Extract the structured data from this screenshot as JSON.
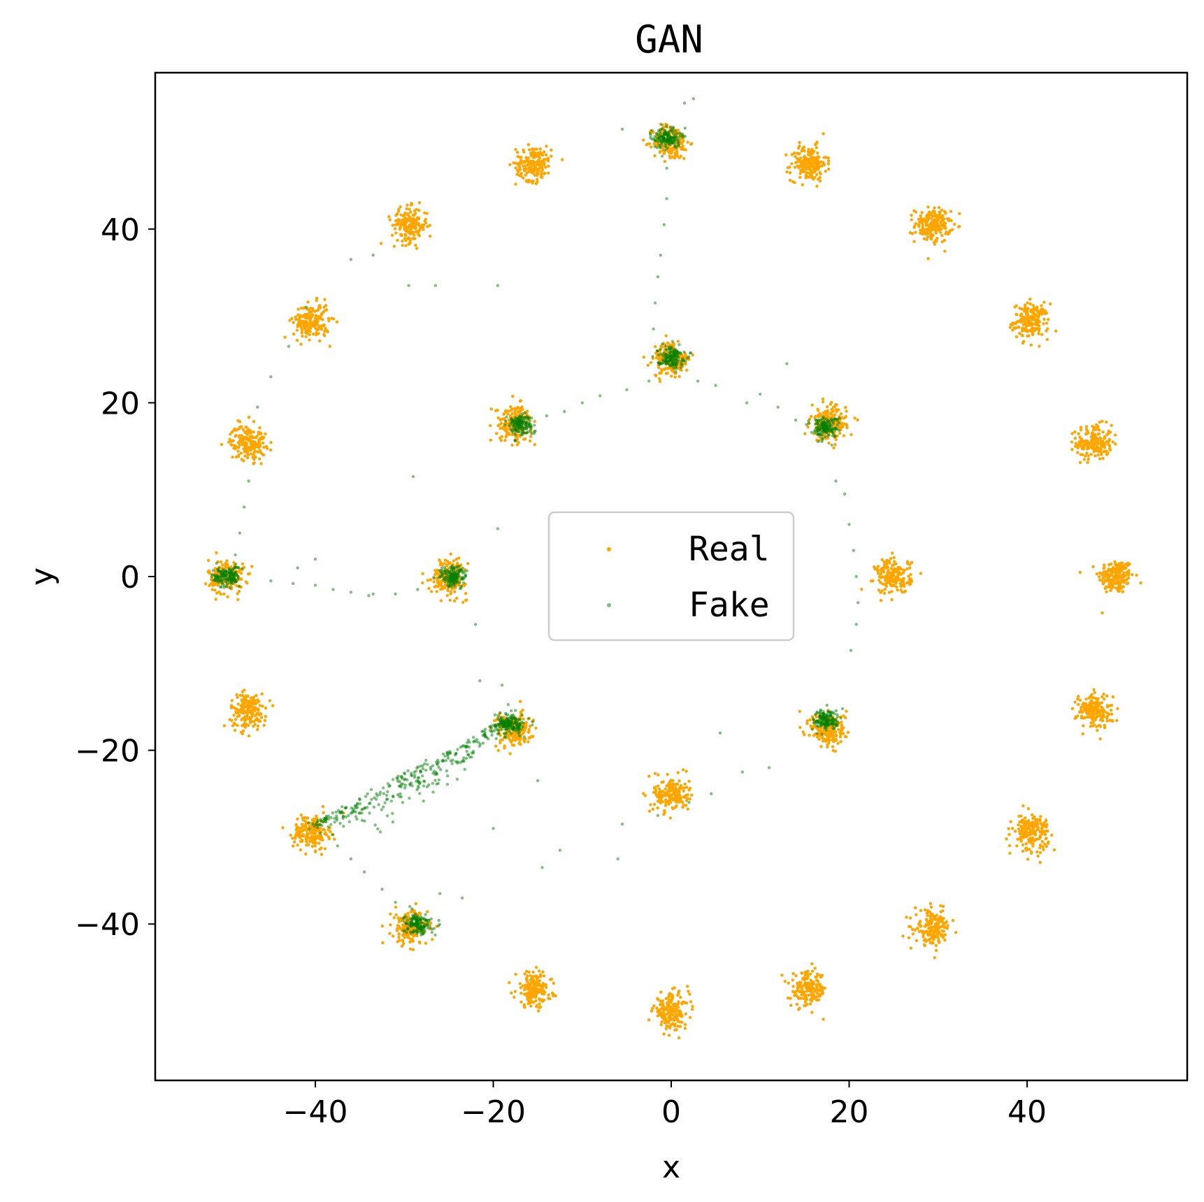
{
  "chart_data": {
    "type": "scatter",
    "title": "GAN",
    "xlabel": "x",
    "ylabel": "y",
    "xlim": [
      -58,
      58
    ],
    "ylim": [
      -58,
      58
    ],
    "x_ticks": [
      -40,
      -20,
      0,
      20,
      40
    ],
    "y_ticks": [
      -40,
      -20,
      0,
      20,
      40
    ],
    "x_tick_labels": [
      "−40",
      "−20",
      "0",
      "20",
      "40"
    ],
    "y_tick_labels": [
      "−40",
      "−20",
      "0",
      "20",
      "40"
    ],
    "grid": false,
    "legend_position": "center",
    "series": [
      {
        "name": "Real",
        "color": "#ffa500",
        "clusters": [
          [
            50.0,
            0.0
          ],
          [
            47.55,
            15.45
          ],
          [
            40.45,
            29.39
          ],
          [
            29.39,
            40.45
          ],
          [
            15.45,
            47.55
          ],
          [
            0.0,
            50.0
          ],
          [
            -15.45,
            47.55
          ],
          [
            -29.39,
            40.45
          ],
          [
            -40.45,
            29.39
          ],
          [
            -47.55,
            15.45
          ],
          [
            -50.0,
            0.0
          ],
          [
            -47.55,
            -15.45
          ],
          [
            -40.45,
            -29.39
          ],
          [
            -29.39,
            -40.45
          ],
          [
            -15.45,
            -47.55
          ],
          [
            0.0,
            -50.0
          ],
          [
            15.45,
            -47.55
          ],
          [
            29.39,
            -40.45
          ],
          [
            40.45,
            -29.39
          ],
          [
            47.55,
            -15.45
          ],
          [
            25.0,
            0.0
          ],
          [
            17.68,
            17.68
          ],
          [
            0.0,
            25.0
          ],
          [
            -17.68,
            17.68
          ],
          [
            -25.0,
            0.0
          ],
          [
            -17.68,
            -17.68
          ],
          [
            0.0,
            -25.0
          ],
          [
            17.68,
            -17.68
          ]
        ],
        "cluster_std": 1.0
      },
      {
        "name": "Fake",
        "color": "#008000",
        "clusters": [
          [
            -0.5,
            50.5
          ],
          [
            0.0,
            25.3
          ],
          [
            -17.0,
            17.5
          ],
          [
            17.3,
            17.2
          ],
          [
            -24.5,
            0.0
          ],
          [
            -50.0,
            0.0
          ],
          [
            17.5,
            -16.5
          ],
          [
            -18.0,
            -17.0
          ],
          [
            -28.5,
            -40.0
          ]
        ],
        "stray_points": [
          [
            1.5,
            54.5
          ],
          [
            2.5,
            55.0
          ],
          [
            -1.0,
            52.0
          ],
          [
            -5.5,
            51.5
          ],
          [
            -0.5,
            47.0
          ],
          [
            -0.5,
            43.5
          ],
          [
            -0.8,
            40.5
          ],
          [
            -1.2,
            37.0
          ],
          [
            -1.5,
            34.5
          ],
          [
            -1.8,
            31.5
          ],
          [
            -2.0,
            28.5
          ],
          [
            -2.5,
            22.5
          ],
          [
            -5.0,
            21.5
          ],
          [
            -8.0,
            20.8
          ],
          [
            -10.0,
            20.0
          ],
          [
            -12.0,
            19.0
          ],
          [
            -14.0,
            18.5
          ],
          [
            3.0,
            22.5
          ],
          [
            5.0,
            22.0
          ],
          [
            8.5,
            20.0
          ],
          [
            10.0,
            21.0
          ],
          [
            12.0,
            19.5
          ],
          [
            14.0,
            18.0
          ],
          [
            13.0,
            24.5
          ],
          [
            18.5,
            11.0
          ],
          [
            19.5,
            9.5
          ],
          [
            20.0,
            6.0
          ],
          [
            20.5,
            3.0
          ],
          [
            20.8,
            0.0
          ],
          [
            21.0,
            -3.0
          ],
          [
            20.8,
            -5.5
          ],
          [
            20.2,
            -8.5
          ],
          [
            5.5,
            -18.0
          ],
          [
            11.0,
            -22.0
          ],
          [
            8.0,
            -22.5
          ],
          [
            4.5,
            -25.0
          ],
          [
            2.0,
            -26.0
          ],
          [
            -1.5,
            -27.5
          ],
          [
            -5.5,
            -28.5
          ],
          [
            -6.0,
            -32.5
          ],
          [
            -12.5,
            -31.5
          ],
          [
            -14.5,
            -33.5
          ],
          [
            -20.0,
            -29.0
          ],
          [
            -23.5,
            -37.0
          ],
          [
            -26.0,
            -36.5
          ],
          [
            -31.0,
            -37.5
          ],
          [
            -32.5,
            -36.0
          ],
          [
            -34.5,
            -34.0
          ],
          [
            -36.0,
            -32.5
          ],
          [
            -37.5,
            -31.0
          ],
          [
            -15.0,
            -23.5
          ],
          [
            -21.5,
            -12.0
          ],
          [
            -19.0,
            -12.5
          ],
          [
            -22.0,
            -5.5
          ],
          [
            -19.5,
            5.5
          ],
          [
            -29.0,
            11.5
          ],
          [
            -29.5,
            33.5
          ],
          [
            -26.5,
            33.5
          ],
          [
            -19.5,
            33.5
          ],
          [
            -36.0,
            36.5
          ],
          [
            -33.5,
            37.0
          ],
          [
            -41.0,
            31.0
          ],
          [
            -43.0,
            26.5
          ],
          [
            -45.0,
            23.0
          ],
          [
            -46.5,
            19.5
          ],
          [
            -47.5,
            11.0
          ],
          [
            -48.0,
            8.0
          ],
          [
            -48.5,
            5.0
          ],
          [
            -49.0,
            2.5
          ],
          [
            -45.0,
            -0.5
          ],
          [
            -42.5,
            -0.8
          ],
          [
            -40.0,
            -1.0
          ],
          [
            -38.0,
            -1.5
          ],
          [
            -36.0,
            -1.8
          ],
          [
            -33.5,
            -2.0
          ],
          [
            -31.0,
            -2.0
          ],
          [
            -28.5,
            -1.5
          ],
          [
            -40.0,
            2.0
          ],
          [
            -42.0,
            1.0
          ],
          [
            -34.0,
            -2.2
          ]
        ],
        "trail_start": [
          -18.5,
          -16.5
        ],
        "trail_end": [
          -40.5,
          -28.5
        ]
      }
    ]
  }
}
